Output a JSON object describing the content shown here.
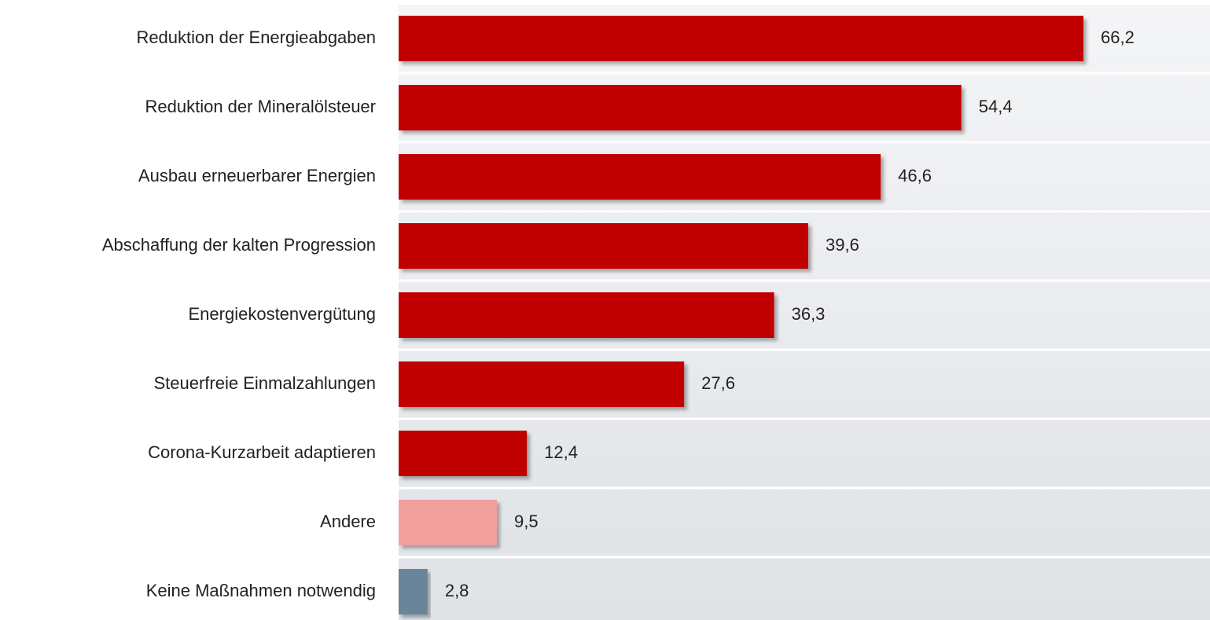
{
  "chart_data": {
    "type": "barh",
    "categories": [
      "Reduktion der Energieabgaben",
      "Reduktion der Mineralölsteuer",
      "Ausbau erneuerbarer Energien",
      "Abschaffung der kalten Progression",
      "Energiekostenvergütung",
      "Steuerfreie Einmalzahlungen",
      "Corona-Kurzarbeit adaptieren",
      "Andere",
      "Keine Maßnahmen notwendig"
    ],
    "values": [
      66.2,
      54.4,
      46.6,
      39.6,
      36.3,
      27.6,
      12.4,
      9.5,
      2.8
    ],
    "value_labels": [
      "66,2",
      "54,4",
      "46,6",
      "39,6",
      "36,3",
      "27,6",
      "12,4",
      "9,5",
      "2,8"
    ],
    "colors": [
      "#c00000",
      "#c00000",
      "#c00000",
      "#c00000",
      "#c00000",
      "#c00000",
      "#c00000",
      "#f2a09e",
      "#6a8499"
    ]
  }
}
